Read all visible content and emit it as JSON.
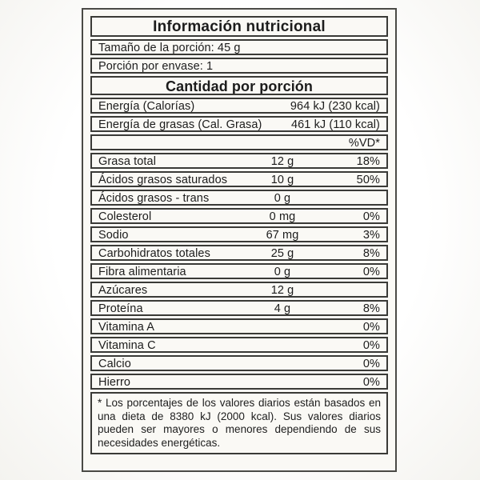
{
  "label": {
    "title": "Información nutricional",
    "serving_size": "Tamaño de la porción: 45 g",
    "servings_per_container": "Porción por envase: 1",
    "amount_header": "Cantidad por porción",
    "energy_rows": [
      {
        "name": "Energía (Calorías)",
        "value": "964 kJ (230 kcal)"
      },
      {
        "name": "Energía de grasas (Cal. Grasa)",
        "value": "461 kJ (110 kcal)"
      }
    ],
    "dv_header": "%VD*",
    "nutrient_rows": [
      {
        "name": "Grasa total",
        "amount": "12 g",
        "dv": "18%"
      },
      {
        "name": "Ácidos grasos saturados",
        "amount": "10 g",
        "dv": "50%"
      },
      {
        "name": "Ácidos grasos - trans",
        "amount": "0 g",
        "dv": ""
      },
      {
        "name": "Colesterol",
        "amount": "0 mg",
        "dv": "0%"
      },
      {
        "name": "Sodio",
        "amount": "67 mg",
        "dv": "3%"
      },
      {
        "name": "Carbohidratos totales",
        "amount": "25 g",
        "dv": "8%"
      },
      {
        "name": "Fibra alimentaria",
        "amount": "0 g",
        "dv": "0%"
      },
      {
        "name": "Azúcares",
        "amount": "12 g",
        "dv": ""
      },
      {
        "name": "Proteína",
        "amount": "4 g",
        "dv": "8%"
      },
      {
        "name": "Vitamina A",
        "amount": "",
        "dv": "0%"
      },
      {
        "name": "Vitamina C",
        "amount": "",
        "dv": "0%"
      },
      {
        "name": "Calcio",
        "amount": "",
        "dv": "0%"
      },
      {
        "name": "Hierro",
        "amount": "",
        "dv": "0%"
      }
    ],
    "footnote": "* Los porcentajes de los valores diarios están basados en una dieta de 8380 kJ (2000 kcal). Sus valores diarios pueden ser mayores o menores dependiendo de sus necesidades energéticas.",
    "colors": {
      "border": "#3a3a37",
      "background": "#faf9f5",
      "text": "#1c1c1c"
    }
  }
}
